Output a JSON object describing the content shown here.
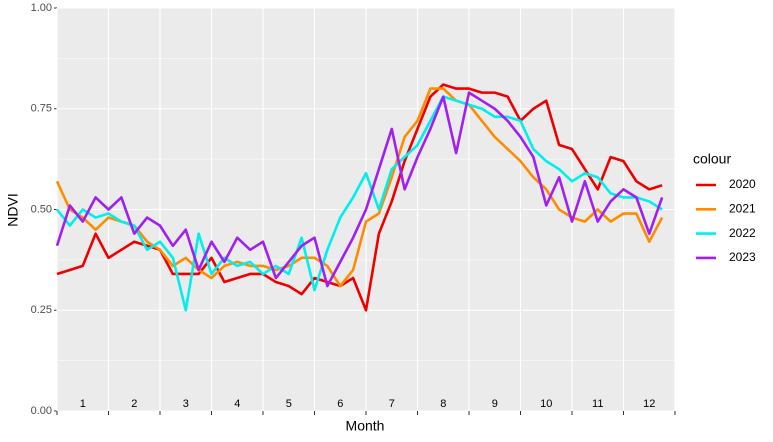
{
  "chart_data": {
    "type": "line",
    "x_label": "Month",
    "y_label": "NDVI",
    "legend_title": "colour",
    "legend": "right",
    "x": [
      1,
      1.25,
      1.5,
      1.75,
      2,
      2.25,
      2.5,
      2.75,
      3,
      3.25,
      3.5,
      3.75,
      4,
      4.25,
      4.5,
      4.75,
      5,
      5.25,
      5.5,
      5.75,
      6,
      6.25,
      6.5,
      6.75,
      7,
      7.25,
      7.5,
      7.75,
      8,
      8.25,
      8.5,
      8.75,
      9,
      9.25,
      9.5,
      9.75,
      10,
      10.25,
      10.5,
      10.75,
      11,
      11.25,
      11.5,
      11.75,
      12,
      12.25,
      12.5,
      12.75
    ],
    "xlim": [
      1,
      13
    ],
    "xticks": [
      {
        "value": 1.5,
        "label": "1"
      },
      {
        "value": 2.5,
        "label": "2"
      },
      {
        "value": 3.5,
        "label": "3"
      },
      {
        "value": 4.5,
        "label": "4"
      },
      {
        "value": 5.5,
        "label": "5"
      },
      {
        "value": 6.5,
        "label": "6"
      },
      {
        "value": 7.5,
        "label": "7"
      },
      {
        "value": 8.5,
        "label": "8"
      },
      {
        "value": 9.5,
        "label": "9"
      },
      {
        "value": 10.5,
        "label": "10"
      },
      {
        "value": 11.5,
        "label": "11"
      },
      {
        "value": 12.5,
        "label": "12"
      }
    ],
    "ylim": [
      0,
      1
    ],
    "yticks": [
      {
        "value": 0,
        "label": "0.00"
      },
      {
        "value": 0.25,
        "label": "0.25"
      },
      {
        "value": 0.5,
        "label": "0.50"
      },
      {
        "value": 0.75,
        "label": "0.75"
      },
      {
        "value": 1,
        "label": "1.00"
      }
    ],
    "grid": true,
    "series": [
      {
        "name": "2020",
        "color": "#ee0000",
        "values": [
          0.34,
          0.35,
          0.36,
          0.44,
          0.38,
          0.4,
          0.42,
          0.41,
          0.4,
          0.34,
          0.34,
          0.34,
          0.38,
          0.32,
          0.33,
          0.34,
          0.34,
          0.32,
          0.31,
          0.29,
          0.33,
          0.32,
          0.31,
          0.33,
          0.25,
          0.44,
          0.52,
          0.62,
          0.7,
          0.78,
          0.81,
          0.8,
          0.8,
          0.79,
          0.79,
          0.78,
          0.72,
          0.75,
          0.77,
          0.66,
          0.65,
          0.6,
          0.55,
          0.63,
          0.62,
          0.57,
          0.55,
          0.56
        ]
      },
      {
        "name": "2021",
        "color": "#ff8c00",
        "values": [
          0.57,
          0.5,
          0.48,
          0.45,
          0.48,
          0.47,
          0.46,
          0.42,
          0.4,
          0.36,
          0.38,
          0.35,
          0.33,
          0.36,
          0.37,
          0.36,
          0.36,
          0.35,
          0.36,
          0.38,
          0.38,
          0.36,
          0.31,
          0.35,
          0.47,
          0.49,
          0.58,
          0.68,
          0.72,
          0.8,
          0.8,
          0.77,
          0.76,
          0.72,
          0.68,
          0.65,
          0.62,
          0.58,
          0.55,
          0.5,
          0.48,
          0.47,
          0.5,
          0.47,
          0.49,
          0.49,
          0.42,
          0.48
        ]
      },
      {
        "name": "2022",
        "color": "#00eeee",
        "values": [
          0.5,
          0.46,
          0.5,
          0.48,
          0.49,
          0.47,
          0.46,
          0.4,
          0.42,
          0.38,
          0.25,
          0.44,
          0.34,
          0.38,
          0.36,
          0.37,
          0.34,
          0.36,
          0.34,
          0.43,
          0.3,
          0.4,
          0.48,
          0.53,
          0.59,
          0.5,
          0.6,
          0.63,
          0.66,
          0.72,
          0.78,
          0.77,
          0.76,
          0.75,
          0.73,
          0.73,
          0.72,
          0.65,
          0.62,
          0.6,
          0.57,
          0.59,
          0.58,
          0.54,
          0.53,
          0.53,
          0.52,
          0.5
        ]
      },
      {
        "name": "2023",
        "color": "#a020f0",
        "values": [
          0.41,
          0.51,
          0.47,
          0.53,
          0.5,
          0.53,
          0.44,
          0.48,
          0.46,
          0.41,
          0.45,
          0.35,
          0.42,
          0.37,
          0.43,
          0.4,
          0.42,
          0.33,
          0.37,
          0.41,
          0.43,
          0.31,
          0.37,
          0.43,
          0.5,
          0.6,
          0.7,
          0.55,
          0.63,
          0.7,
          0.78,
          0.64,
          0.79,
          0.77,
          0.75,
          0.72,
          0.68,
          0.63,
          0.51,
          0.58,
          0.47,
          0.57,
          0.47,
          0.52,
          0.55,
          0.53,
          0.44,
          0.53
        ]
      }
    ]
  }
}
